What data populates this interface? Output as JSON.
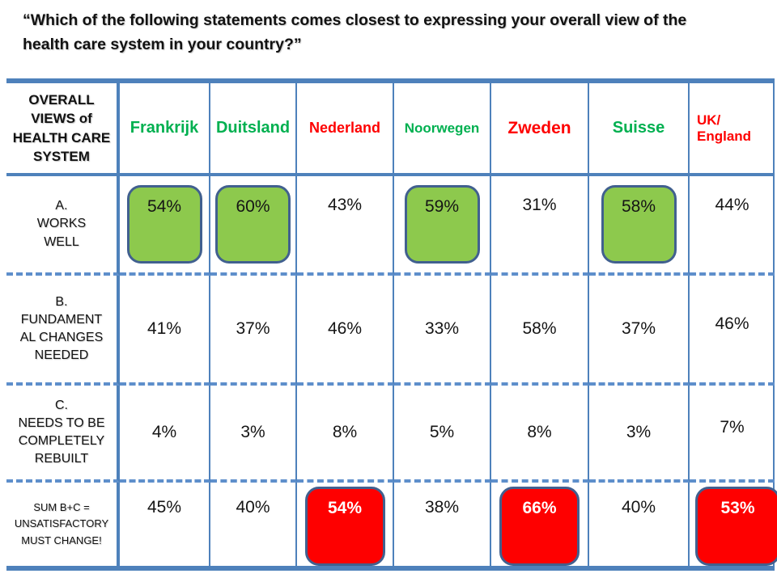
{
  "title": "“Which of the following statements comes closest to expressing your overall view of the\nhealth care system in your country?”",
  "colors": {
    "table_border": "#4E81BB",
    "dashed_divider": "#5E8FCB",
    "positive_header_text": "#00B050",
    "negative_header_text": "#FE0000",
    "highlight_green_fill": "#8DC94D",
    "highlight_red_fill": "#FE0000",
    "highlight_box_border": "#41608F"
  },
  "table": {
    "corner_header": "OVERALL\nVIEWS of\nHEALTH CARE\nSYSTEM",
    "columns": [
      {
        "label": "Frankrijk",
        "color": "#00B050"
      },
      {
        "label": "Duitsland",
        "color": "#00B050"
      },
      {
        "label": "Nederland",
        "color": "#FE0000"
      },
      {
        "label": "Noorwegen",
        "color": "#00B050"
      },
      {
        "label": "Zweden",
        "color": "#FE0000"
      },
      {
        "label": "Suisse",
        "color": "#00B050"
      },
      {
        "label": "UK/\nEngland",
        "color": "#FE0000"
      }
    ],
    "rows": [
      {
        "label": "A.\nWORKS\nWELL",
        "values": [
          "54%",
          "60%",
          "43%",
          "59%",
          "31%",
          "58%",
          "44%"
        ],
        "highlights": [
          "green",
          "green",
          null,
          "green",
          null,
          "green",
          null
        ]
      },
      {
        "label": "B.\nFUNDAMENT\nAL CHANGES\nNEEDED",
        "values": [
          "41%",
          "37%",
          "46%",
          "33%",
          "58%",
          "37%",
          "46%"
        ],
        "highlights": [
          null,
          null,
          null,
          null,
          null,
          null,
          null
        ]
      },
      {
        "label": "C.\nNEEDS TO BE\nCOMPLETELY\nREBUILT",
        "values": [
          "4%",
          "3%",
          "8%",
          "5%",
          "8%",
          "3%",
          "7%"
        ],
        "highlights": [
          null,
          null,
          null,
          null,
          null,
          null,
          null
        ]
      },
      {
        "label": "SUM B+C =\nUNSATISFACTORY\nMUST CHANGE!",
        "values": [
          "45%",
          "40%",
          "54%",
          "38%",
          "66%",
          "40%",
          "53%"
        ],
        "highlights": [
          null,
          null,
          "red",
          null,
          "red",
          null,
          "red"
        ]
      }
    ]
  },
  "chart_data": {
    "type": "table",
    "title": "“Which of the following statements comes closest to expressing your overall view of the health care system in your country?”",
    "categories": [
      "Frankrijk",
      "Duitsland",
      "Nederland",
      "Noorwegen",
      "Zweden",
      "Suisse",
      "UK/England"
    ],
    "series": [
      {
        "name": "A. WORKS WELL",
        "values": [
          54,
          60,
          43,
          59,
          31,
          58,
          44
        ],
        "highlighted_green": [
          "Frankrijk",
          "Duitsland",
          "Noorwegen",
          "Suisse"
        ]
      },
      {
        "name": "B. FUNDAMENTAL CHANGES NEEDED",
        "values": [
          41,
          37,
          46,
          33,
          58,
          37,
          46
        ]
      },
      {
        "name": "C. NEEDS TO BE COMPLETELY REBUILT",
        "values": [
          4,
          3,
          8,
          5,
          8,
          3,
          7
        ]
      },
      {
        "name": "SUM B+C = UNSATISFACTORY MUST CHANGE!",
        "values": [
          45,
          40,
          54,
          38,
          66,
          40,
          53
        ],
        "highlighted_red": [
          "Nederland",
          "Zweden",
          "UK/England"
        ]
      }
    ],
    "legend_position": "none",
    "grid": "solid column dividers, dashed row dividers"
  }
}
